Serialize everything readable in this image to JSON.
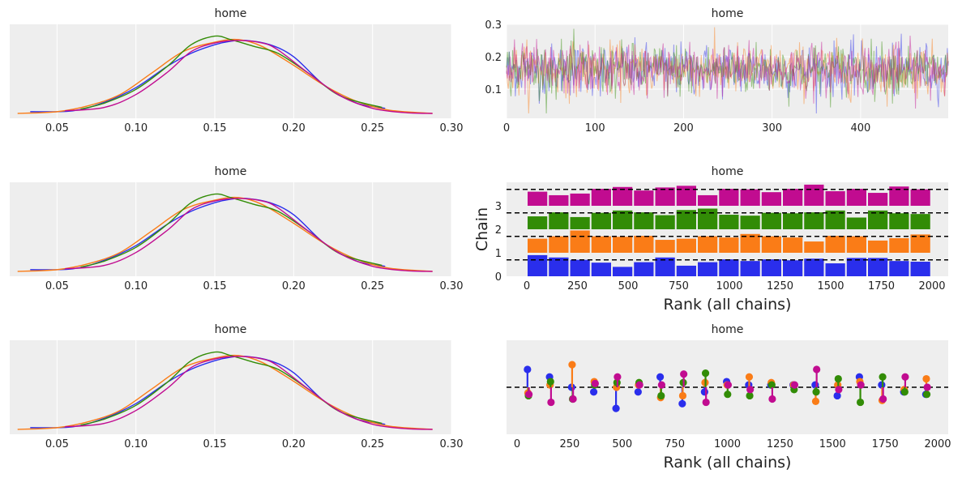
{
  "chart_data": [
    {
      "type": "line",
      "id": "kde_1",
      "title": "home",
      "xlim": [
        0.02,
        0.3
      ],
      "xticks": [
        0.05,
        0.1,
        0.15,
        0.2,
        0.25,
        0.3
      ],
      "xtick_labels": [
        "0.05",
        "0.10",
        "0.15",
        "0.20",
        "0.25",
        "0.30"
      ],
      "grid": true,
      "series": [
        {
          "name": "chain 0",
          "color": "#2a2eec",
          "x": [
            0.033,
            0.06,
            0.08,
            0.1,
            0.12,
            0.135,
            0.15,
            0.16,
            0.17,
            0.185,
            0.2,
            0.22,
            0.24,
            0.258
          ],
          "y": [
            0.02,
            0.03,
            0.13,
            0.3,
            0.55,
            0.7,
            0.8,
            0.84,
            0.85,
            0.8,
            0.66,
            0.32,
            0.12,
            0.06
          ]
        },
        {
          "name": "chain 1",
          "color": "#fa7c17",
          "x": [
            0.025,
            0.05,
            0.07,
            0.09,
            0.11,
            0.13,
            0.15,
            0.165,
            0.18,
            0.2,
            0.22,
            0.24,
            0.26,
            0.288
          ],
          "y": [
            0.0,
            0.02,
            0.09,
            0.22,
            0.47,
            0.72,
            0.83,
            0.86,
            0.78,
            0.56,
            0.32,
            0.14,
            0.04,
            0.0
          ]
        },
        {
          "name": "chain 2",
          "color": "#328c06",
          "x": [
            0.065,
            0.08,
            0.1,
            0.12,
            0.135,
            0.15,
            0.16,
            0.175,
            0.19,
            0.21,
            0.23,
            0.256
          ],
          "y": [
            0.05,
            0.12,
            0.28,
            0.55,
            0.8,
            0.9,
            0.86,
            0.78,
            0.7,
            0.46,
            0.2,
            0.07
          ]
        },
        {
          "name": "chain 3",
          "color": "#c10c90",
          "x": [
            0.055,
            0.08,
            0.1,
            0.12,
            0.135,
            0.15,
            0.165,
            0.18,
            0.19,
            0.21,
            0.23,
            0.25,
            0.27,
            0.288
          ],
          "y": [
            0.03,
            0.07,
            0.22,
            0.48,
            0.72,
            0.82,
            0.85,
            0.82,
            0.74,
            0.46,
            0.2,
            0.06,
            0.01,
            0.0
          ]
        }
      ]
    },
    {
      "type": "line",
      "id": "trace",
      "title": "home",
      "xlim": [
        0,
        499
      ],
      "ylim": [
        0.01,
        0.3
      ],
      "xticks": [
        0,
        100,
        200,
        300,
        400
      ],
      "xtick_labels": [
        "0",
        "100",
        "200",
        "300",
        "400"
      ],
      "yticks": [
        0.1,
        0.2,
        0.3
      ],
      "ytick_labels": [
        "0.1",
        "0.2",
        "0.3"
      ],
      "grid": true,
      "draws": 500,
      "chains": 4,
      "mean": 0.16,
      "sd": 0.04,
      "series_colors": [
        "#2a2eec",
        "#fa7c17",
        "#328c06",
        "#c10c90"
      ]
    },
    {
      "type": "bar",
      "id": "rank",
      "title": "home",
      "xlabel": "Rank (all chains)",
      "ylabel": "Chain",
      "xlim": [
        -100,
        2080
      ],
      "ylim": [
        0,
        4.0
      ],
      "xticks": [
        0,
        250,
        500,
        750,
        1000,
        1250,
        1500,
        1750,
        2000
      ],
      "xtick_labels": [
        "0",
        "250",
        "500",
        "750",
        "1000",
        "1250",
        "1500",
        "1750",
        "2000"
      ],
      "yticks": [
        0,
        1,
        2,
        3
      ],
      "ytick_labels": [
        "0",
        "1",
        "2",
        "3"
      ],
      "bin_width": 105,
      "bins": 19,
      "reference_line_height": 0.7,
      "series": [
        {
          "name": "chain 0",
          "color": "#2a2eec",
          "offset": 0,
          "values": [
            0.9,
            0.8,
            0.7,
            0.58,
            0.4,
            0.6,
            0.8,
            0.45,
            0.6,
            0.72,
            0.65,
            0.72,
            0.68,
            0.75,
            0.55,
            0.78,
            0.78,
            0.65,
            0.62
          ]
        },
        {
          "name": "chain 1",
          "color": "#fa7c17",
          "offset": 1,
          "values": [
            0.6,
            0.7,
            0.95,
            0.7,
            0.68,
            0.72,
            0.55,
            0.6,
            0.7,
            0.65,
            0.8,
            0.7,
            0.65,
            0.48,
            0.72,
            0.7,
            0.52,
            0.62,
            0.78
          ]
        },
        {
          "name": "chain 2",
          "color": "#328c06",
          "offset": 2,
          "values": [
            0.55,
            0.72,
            0.52,
            0.7,
            0.8,
            0.72,
            0.6,
            0.82,
            0.88,
            0.62,
            0.58,
            0.7,
            0.68,
            0.72,
            0.8,
            0.5,
            0.8,
            0.68,
            0.65
          ]
        },
        {
          "name": "chain 3",
          "color": "#c10c90",
          "offset": 3,
          "values": [
            0.6,
            0.45,
            0.52,
            0.72,
            0.8,
            0.65,
            0.78,
            0.85,
            0.45,
            0.72,
            0.7,
            0.58,
            0.72,
            0.9,
            0.62,
            0.72,
            0.55,
            0.82,
            0.7
          ]
        }
      ]
    },
    {
      "type": "scatter",
      "id": "rank_vlines",
      "title": "home",
      "xlabel": "Rank (all chains)",
      "xlim": [
        -50,
        2050
      ],
      "ylim": [
        -1.0,
        1.0
      ],
      "xticks": [
        0,
        250,
        500,
        750,
        1000,
        1250,
        1500,
        1750,
        2000
      ],
      "xtick_labels": [
        "0",
        "250",
        "500",
        "750",
        "1000",
        "1250",
        "1500",
        "1750",
        "2000"
      ],
      "reference_line": 0,
      "x": [
        53,
        158,
        263,
        368,
        474,
        579,
        684,
        789,
        895,
        1000,
        1105,
        1210,
        1316,
        1421,
        1526,
        1631,
        1737,
        1842,
        1947
      ],
      "series": [
        {
          "name": "chain 0",
          "color": "#2a2eec",
          "values": [
            0.38,
            0.22,
            0.0,
            -0.1,
            -0.45,
            -0.1,
            0.22,
            -0.35,
            -0.1,
            0.12,
            0.05,
            0.05,
            0.05,
            0.05,
            -0.18,
            0.22,
            0.05,
            -0.1,
            -0.15
          ]
        },
        {
          "name": "chain 1",
          "color": "#fa7c17",
          "values": [
            -0.12,
            0.05,
            0.48,
            0.12,
            0.0,
            0.05,
            -0.22,
            -0.18,
            0.1,
            0.05,
            0.22,
            0.1,
            0.05,
            -0.3,
            0.05,
            0.12,
            -0.28,
            -0.05,
            0.18
          ]
        },
        {
          "name": "chain 2",
          "color": "#328c06",
          "values": [
            -0.18,
            0.12,
            -0.25,
            0.05,
            0.1,
            0.1,
            -0.18,
            0.1,
            0.3,
            -0.15,
            -0.18,
            0.05,
            -0.05,
            -0.1,
            0.18,
            -0.32,
            0.22,
            -0.1,
            -0.15
          ]
        },
        {
          "name": "chain 3",
          "color": "#c10c90",
          "values": [
            -0.15,
            -0.32,
            -0.25,
            0.08,
            0.22,
            0.05,
            0.05,
            0.28,
            -0.32,
            0.05,
            -0.05,
            -0.25,
            0.05,
            0.38,
            -0.05,
            0.05,
            -0.25,
            0.22,
            0.0
          ]
        }
      ]
    },
    {
      "type": "line",
      "id": "kde_2",
      "title": "home",
      "same_as": "kde_1",
      "xticks": [
        0.05,
        0.1,
        0.15,
        0.2,
        0.25,
        0.3
      ],
      "xtick_labels": [
        "0.05",
        "0.10",
        "0.15",
        "0.20",
        "0.25",
        "0.30"
      ]
    },
    {
      "type": "line",
      "id": "kde_3",
      "title": "home",
      "same_as": "kde_1",
      "xticks": [
        0.05,
        0.1,
        0.15,
        0.2,
        0.25,
        0.3
      ],
      "xtick_labels": [
        "0.05",
        "0.10",
        "0.15",
        "0.20",
        "0.25",
        "0.30"
      ]
    }
  ]
}
